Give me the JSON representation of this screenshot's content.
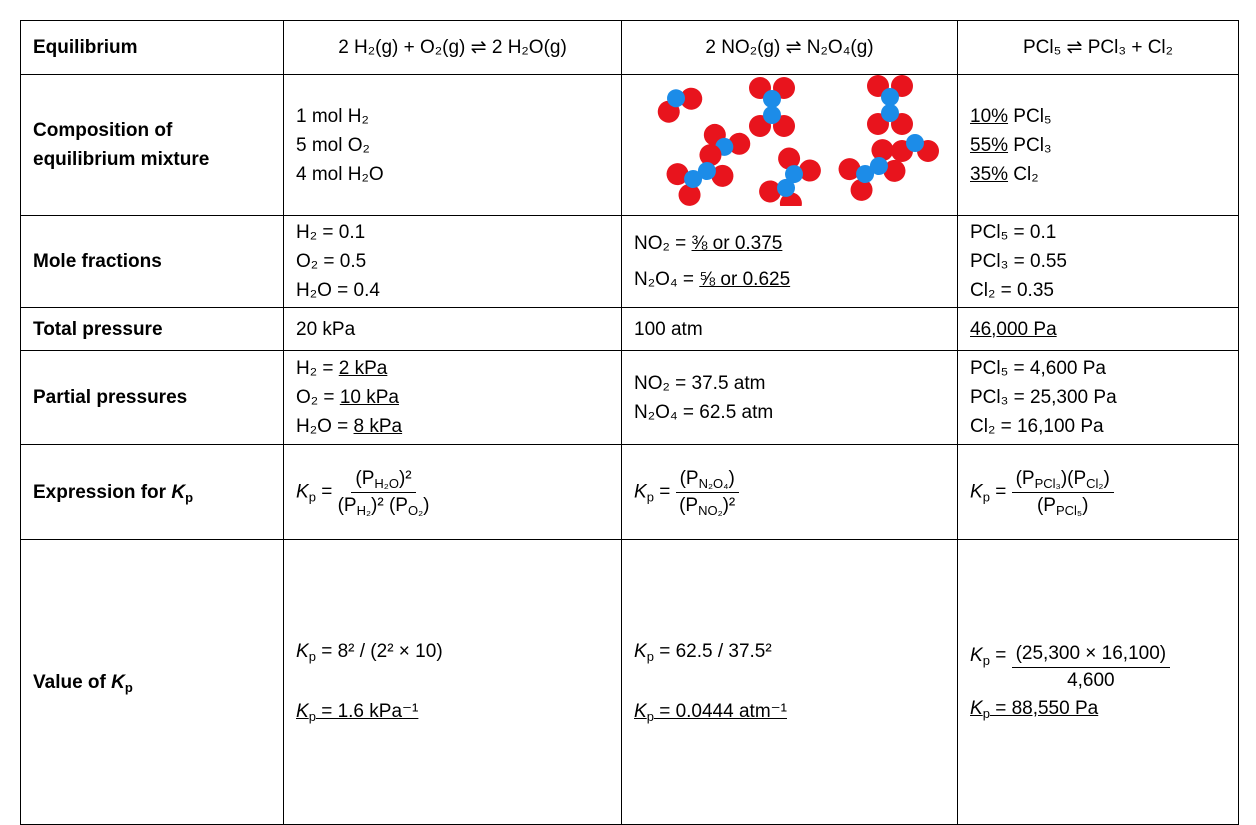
{
  "table": {
    "header": [
      "Equilibrium",
      "2 H₂(g) + O₂(g) ⇌ 2 H₂O(g)",
      "2 NO₂(g) ⇌ N₂O₄(g)",
      "PCl₅ ⇌ PCl₃ + Cl₂"
    ],
    "composition": {
      "label": "Composition of equilibrium mixture",
      "h2": [
        "1 mol H₂",
        "5 mol O₂",
        "4 mol H₂O"
      ],
      "pcl": [
        [
          "10%",
          " PCl₅"
        ],
        [
          "55%",
          " PCl₃"
        ],
        [
          "35%",
          " Cl₂"
        ]
      ]
    },
    "mole_fractions": {
      "label": "Mole fractions",
      "h2": [
        "H₂ = 0.1",
        "O₂ = 0.5",
        "H₂O = 0.4"
      ],
      "no2": [
        [
          "NO₂ = ",
          "⅜ or 0.375"
        ],
        [
          "N₂O₄ = ",
          "⅝ or 0.625"
        ]
      ],
      "pcl": [
        "PCl₅ = 0.1",
        "PCl₃ = 0.55",
        "Cl₂ = 0.35"
      ]
    },
    "total_pressure": {
      "label": "Total pressure",
      "values": [
        "20 kPa",
        "100 atm",
        "46,000 Pa"
      ]
    },
    "partial_pressures": {
      "label": "Partial pressures",
      "h2": [
        [
          "H₂ = ",
          "2 kPa"
        ],
        [
          "O₂ = ",
          "10 kPa"
        ],
        [
          "H₂O = ",
          "8 kPa"
        ]
      ],
      "no2": [
        "NO₂ = 37.5 atm",
        "N₂O₄ = 62.5 atm"
      ],
      "pcl": [
        "PCl₅ = 4,600 Pa",
        "PCl₃ = 25,300 Pa",
        "Cl₂ = 16,100 Pa"
      ]
    },
    "expression": {
      "label": [
        "Expression for ",
        "K",
        "p"
      ],
      "h2": {
        "lhs": [
          "K",
          "p",
          " = "
        ],
        "num": [
          "(P",
          "H₂O",
          ")²"
        ],
        "den": [
          "(P",
          "H₂",
          ")² (P",
          "O₂",
          ")"
        ]
      },
      "no2": {
        "lhs": [
          "K",
          "p",
          " = "
        ],
        "num": [
          "(P",
          "N₂O₄",
          ")"
        ],
        "den": [
          "(P",
          "NO₂",
          ")²"
        ]
      },
      "pcl": {
        "lhs": [
          "K",
          "p",
          " = "
        ],
        "num": [
          "(P",
          "PCl₃",
          ")(P",
          "Cl₂",
          ")"
        ],
        "den": [
          "(P",
          "PCl₅",
          ")"
        ]
      }
    },
    "value": {
      "label": [
        "Value of ",
        "K",
        "p"
      ],
      "h2": [
        [
          "K",
          "p",
          " = 8² / (2² × 10)"
        ],
        [
          "K",
          "p",
          " = 1.6 kPa⁻¹"
        ]
      ],
      "no2": [
        [
          "K",
          "p",
          " =  62.5 / 37.5²"
        ],
        [
          "K",
          "p",
          " = 0.0444 atm⁻¹"
        ]
      ],
      "pcl": {
        "lhs": [
          "K",
          "p",
          " = "
        ],
        "num": "(25,300 × 16,100)",
        "den": "4,600",
        "result": [
          "K",
          "p",
          " = 88,550 Pa"
        ]
      }
    }
  }
}
